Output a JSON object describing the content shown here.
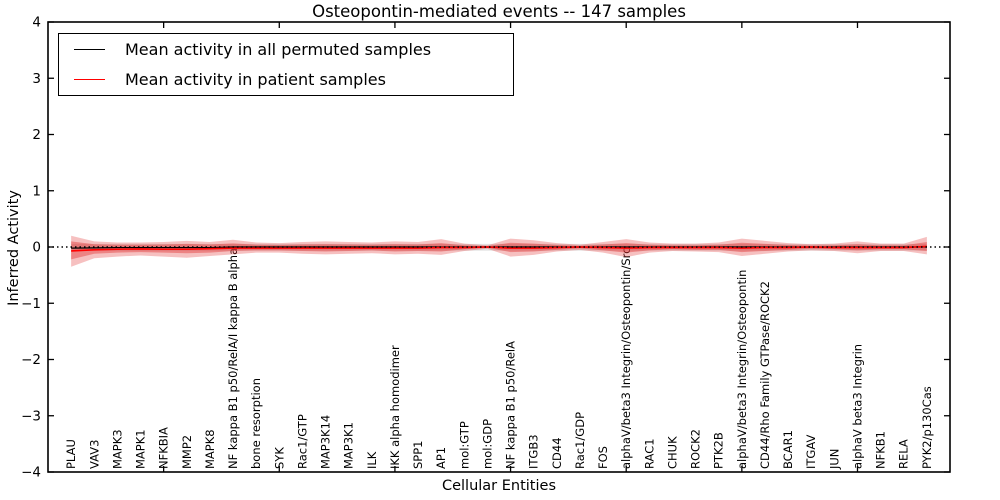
{
  "figure": {
    "title": "Osteopontin-mediated events -- 147 samples",
    "xlabel": "Cellular Entities",
    "ylabel": "Inferred Activity"
  },
  "legend": {
    "position": "upper left",
    "items": [
      {
        "label": "Mean activity in all permuted samples",
        "color": "#000000"
      },
      {
        "label": "Mean activity in patient samples",
        "color": "#ff0000"
      }
    ]
  },
  "chart_data": {
    "type": "line",
    "title": "Osteopontin-mediated events -- 147 samples",
    "xlabel": "Cellular Entities",
    "ylabel": "Inferred Activity",
    "ylim": [
      -4,
      4
    ],
    "yticks": {
      "values": [
        4,
        3,
        2,
        1,
        0,
        -1,
        -2,
        -3,
        -4
      ],
      "labels": [
        "4",
        "3",
        "2",
        "1",
        "0",
        "−1",
        "−2",
        "−3",
        "−4"
      ]
    },
    "xlim": [
      0,
      39
    ],
    "xtick_positions": [
      5,
      10,
      15,
      20,
      25,
      30,
      35
    ],
    "grid": false,
    "zero_line": 0,
    "legend_position": "upper left",
    "categories": [
      "PLAU",
      "VAV3",
      "MAPK3",
      "MAPK1",
      "NFKBIA",
      "MMP2",
      "MAPK8",
      "NF kappa B1 p50/RelA/I kappa B alpha",
      "bone resorption",
      "SYK",
      "Rac1/GTP",
      "MAP3K14",
      "MAP3K1",
      "ILK",
      "IKK alpha homodimer",
      "SPP1",
      "AP1",
      "mol:GTP",
      "mol:GDP",
      "NF kappa B1 p50/RelA",
      "ITGB3",
      "CD44",
      "Rac1/GDP",
      "FOS",
      "alphaV/beta3 Integrin/Osteopontin/Src",
      "RAC1",
      "CHUK",
      "ROCK2",
      "PTK2B",
      "alphaV/beta3 Integrin/Osteopontin",
      "CD44/Rho Family GTPase/ROCK2",
      "BCAR1",
      "ITGAV",
      "JUN",
      "alphaV beta3 Integrin",
      "NFKB1",
      "RELA",
      "PYK2/p130Cas"
    ],
    "series": [
      {
        "name": "Mean activity in all permuted samples",
        "color": "#000000",
        "style": "solid",
        "values": [
          -0.02,
          -0.015,
          -0.01,
          -0.01,
          -0.01,
          -0.01,
          -0.01,
          0,
          0,
          0,
          0,
          0,
          0,
          0,
          0,
          0,
          0,
          0,
          0,
          0,
          0,
          0,
          0,
          0,
          0,
          0,
          0,
          0,
          0,
          0,
          0,
          0,
          0,
          0,
          0,
          0,
          0,
          0
        ]
      },
      {
        "name": "Mean activity in patient samples",
        "color": "#ff0000",
        "style": "solid",
        "values": [
          -0.07,
          -0.05,
          -0.04,
          -0.035,
          -0.04,
          -0.04,
          -0.03,
          -0.02,
          -0.02,
          -0.02,
          -0.02,
          -0.02,
          -0.02,
          -0.02,
          -0.02,
          -0.02,
          -0.01,
          -0.01,
          0,
          -0.02,
          -0.02,
          -0.01,
          0,
          -0.01,
          -0.02,
          -0.01,
          -0.01,
          -0.01,
          -0.01,
          -0.02,
          -0.01,
          -0.01,
          0,
          -0.01,
          -0.01,
          -0.01,
          -0.01,
          0.01
        ]
      },
      {
        "name": "zero reference",
        "color": "#000000",
        "style": "dotted",
        "values": [
          0,
          0,
          0,
          0,
          0,
          0,
          0,
          0,
          0,
          0,
          0,
          0,
          0,
          0,
          0,
          0,
          0,
          0,
          0,
          0,
          0,
          0,
          0,
          0,
          0,
          0,
          0,
          0,
          0,
          0,
          0,
          0,
          0,
          0,
          0,
          0,
          0,
          0
        ]
      }
    ],
    "bands": [
      {
        "name": "permuted samples spread",
        "color": "#999999",
        "opacity": 0.3,
        "hi": [
          0.055,
          0.055,
          0.055,
          0.055,
          0.055,
          0.055,
          0.055,
          0.055,
          0.055,
          0.055,
          0.055,
          0.055,
          0.055,
          0.055,
          0.055,
          0.055,
          0.055,
          0.055,
          0.055,
          0.055,
          0.055,
          0.055,
          0.055,
          0.055,
          0.055,
          0.055,
          0.055,
          0.055,
          0.055,
          0.055,
          0.055,
          0.055,
          0.055,
          0.055,
          0.055,
          0.055,
          0.055,
          0.055
        ],
        "lo": [
          -0.065,
          -0.065,
          -0.065,
          -0.065,
          -0.065,
          -0.065,
          -0.065,
          -0.065,
          -0.065,
          -0.065,
          -0.065,
          -0.065,
          -0.065,
          -0.065,
          -0.065,
          -0.065,
          -0.065,
          -0.065,
          -0.065,
          -0.065,
          -0.065,
          -0.065,
          -0.065,
          -0.065,
          -0.065,
          -0.065,
          -0.065,
          -0.065,
          -0.065,
          -0.065,
          -0.065,
          -0.065,
          -0.065,
          -0.065,
          -0.065,
          -0.065,
          -0.065,
          -0.065
        ]
      },
      {
        "name": "patient samples spread (outer)",
        "color": "#e03030",
        "opacity": 0.3,
        "hi": [
          0.2,
          0.1,
          0.08,
          0.08,
          0.09,
          0.11,
          0.09,
          0.13,
          0.08,
          0.07,
          0.09,
          0.1,
          0.09,
          0.08,
          0.1,
          0.09,
          0.14,
          0.06,
          0.03,
          0.15,
          0.12,
          0.07,
          0.04,
          0.09,
          0.14,
          0.08,
          0.06,
          0.06,
          0.08,
          0.15,
          0.11,
          0.07,
          0.05,
          0.06,
          0.1,
          0.06,
          0.06,
          0.18
        ],
        "lo": [
          -0.35,
          -0.2,
          -0.17,
          -0.15,
          -0.17,
          -0.19,
          -0.16,
          -0.13,
          -0.1,
          -0.1,
          -0.12,
          -0.13,
          -0.12,
          -0.11,
          -0.13,
          -0.12,
          -0.14,
          -0.07,
          -0.03,
          -0.17,
          -0.14,
          -0.08,
          -0.05,
          -0.1,
          -0.18,
          -0.1,
          -0.07,
          -0.08,
          -0.09,
          -0.16,
          -0.12,
          -0.08,
          -0.06,
          -0.07,
          -0.11,
          -0.07,
          -0.07,
          -0.13
        ]
      },
      {
        "name": "patient samples spread (inner)",
        "color": "#e03030",
        "opacity": 0.42,
        "hi": [
          0.1,
          0.05,
          0.04,
          0.04,
          0.045,
          0.055,
          0.045,
          0.065,
          0.04,
          0.035,
          0.045,
          0.05,
          0.045,
          0.04,
          0.05,
          0.045,
          0.07,
          0.03,
          0.015,
          0.075,
          0.06,
          0.035,
          0.02,
          0.045,
          0.07,
          0.04,
          0.03,
          0.03,
          0.04,
          0.075,
          0.055,
          0.035,
          0.025,
          0.03,
          0.05,
          0.03,
          0.03,
          0.09
        ],
        "lo": [
          -0.22,
          -0.12,
          -0.1,
          -0.09,
          -0.1,
          -0.11,
          -0.1,
          -0.07,
          -0.06,
          -0.06,
          -0.07,
          -0.08,
          -0.07,
          -0.06,
          -0.08,
          -0.07,
          -0.08,
          -0.04,
          -0.015,
          -0.09,
          -0.08,
          -0.05,
          -0.025,
          -0.06,
          -0.1,
          -0.06,
          -0.04,
          -0.05,
          -0.05,
          -0.09,
          -0.07,
          -0.05,
          -0.03,
          -0.04,
          -0.06,
          -0.04,
          -0.04,
          -0.07
        ]
      }
    ]
  },
  "colors": {
    "frame": "#000000",
    "background": "#ffffff",
    "patient_line": "#ff0000",
    "permuted_line": "#000000",
    "text": "#000000"
  }
}
